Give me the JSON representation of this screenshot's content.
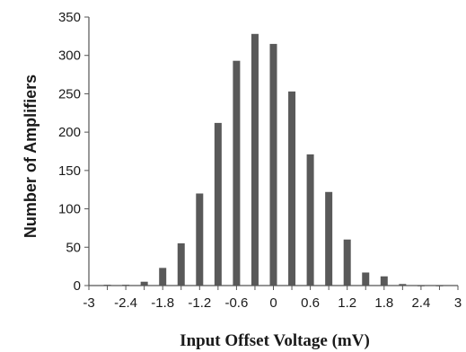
{
  "chart_data": {
    "type": "bar",
    "title": "",
    "xlabel": "Input Offset Voltage (mV)",
    "ylabel": "Number of Amplifiers",
    "x": [
      -2.7,
      -2.4,
      -2.1,
      -1.8,
      -1.5,
      -1.2,
      -0.9,
      -0.6,
      -0.3,
      0,
      0.3,
      0.6,
      0.9,
      1.2,
      1.5,
      1.8,
      2.1,
      2.4,
      2.7
    ],
    "values": [
      1,
      1,
      5,
      23,
      55,
      120,
      212,
      293,
      328,
      315,
      253,
      171,
      122,
      60,
      17,
      12,
      2,
      0,
      0
    ],
    "xlim": [
      -3,
      3
    ],
    "ylim": [
      0,
      350
    ],
    "xticks": [
      -3,
      -2.4,
      -1.8,
      -1.2,
      -0.6,
      0,
      0.6,
      1.2,
      1.8,
      2.4,
      3
    ],
    "xtick_labels": [
      "-3",
      "-2.4",
      "-1.8",
      "-1.2",
      "-0.6",
      "0",
      "0.6",
      "1.2",
      "1.8",
      "2.4",
      "3"
    ],
    "yticks": [
      0,
      50,
      100,
      150,
      200,
      250,
      300,
      350
    ],
    "ytick_labels": [
      "0",
      "50",
      "100",
      "150",
      "200",
      "250",
      "300",
      "350"
    ],
    "bar_color": "#595959",
    "grid": false
  }
}
